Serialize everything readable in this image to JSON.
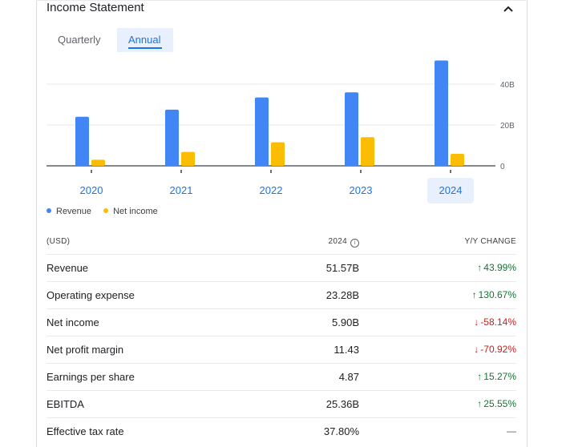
{
  "header": {
    "title": "Income Statement",
    "collapse_icon": "chevron-up-icon"
  },
  "tabs": [
    {
      "label": "Quarterly",
      "selected": false
    },
    {
      "label": "Annual",
      "selected": true
    }
  ],
  "chart_data": {
    "type": "bar",
    "categories": [
      "2020",
      "2021",
      "2022",
      "2023",
      "2024"
    ],
    "selected_category": "2024",
    "series": [
      {
        "name": "Revenue",
        "color": "#4285f4",
        "values": [
          24.0,
          27.5,
          33.5,
          36.0,
          51.57
        ]
      },
      {
        "name": "Net income",
        "color": "#fbbc04",
        "values": [
          3.0,
          6.8,
          11.5,
          14.0,
          5.9
        ]
      }
    ],
    "y_ticks": [
      "40B",
      "20B",
      "0"
    ],
    "y_tick_values": [
      40,
      20,
      0
    ],
    "ylim": [
      0,
      52
    ],
    "grid": true,
    "legend_position": "bottom-left"
  },
  "legend": [
    {
      "label": "Revenue",
      "color": "#4285f4"
    },
    {
      "label": "Net income",
      "color": "#fbbc04"
    }
  ],
  "table": {
    "col_currency": "(USD)",
    "col_year": "2024",
    "col_change": "Y/Y CHANGE",
    "rows": [
      {
        "label": "Revenue",
        "value": "51.57B",
        "change": "43.99%",
        "dir": "up"
      },
      {
        "label": "Operating expense",
        "value": "23.28B",
        "change": "130.67%",
        "dir": "up"
      },
      {
        "label": "Net income",
        "value": "5.90B",
        "change": "-58.14%",
        "dir": "down"
      },
      {
        "label": "Net profit margin",
        "value": "11.43",
        "change": "-70.92%",
        "dir": "down"
      },
      {
        "label": "Earnings per share",
        "value": "4.87",
        "change": "15.27%",
        "dir": "up"
      },
      {
        "label": "EBITDA",
        "value": "25.36B",
        "change": "25.55%",
        "dir": "up"
      },
      {
        "label": "Effective tax rate",
        "value": "37.80%",
        "change": "—",
        "dir": "flat"
      }
    ]
  }
}
